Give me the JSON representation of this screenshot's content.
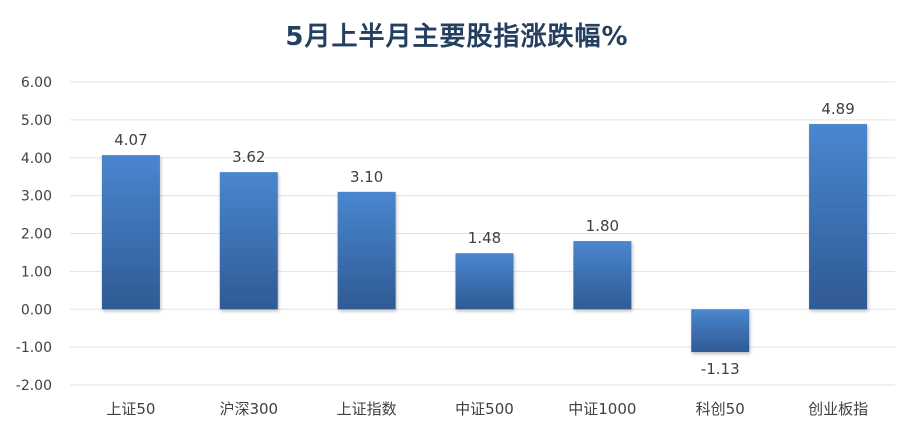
{
  "chart_data": {
    "type": "bar",
    "title": "5月上半月主要股指涨跌幅%",
    "categories": [
      "上证50",
      "沪深300",
      "上证指数",
      "中证500",
      "中证1000",
      "科创50",
      "创业板指"
    ],
    "values": [
      4.07,
      3.62,
      3.1,
      1.48,
      1.8,
      -1.13,
      4.89
    ],
    "value_labels": [
      "4.07",
      "3.62",
      "3.10",
      "1.48",
      "1.80",
      "-1.13",
      "4.89"
    ],
    "yticks": [
      "6.00",
      "5.00",
      "4.00",
      "3.00",
      "2.00",
      "1.00",
      "0.00",
      "-1.00",
      "-2.00"
    ],
    "ylim": [
      -2,
      6
    ],
    "grid": true,
    "colors": {
      "bar_top": "#4a86cf",
      "bar_bottom": "#2f5a94",
      "grid": "#e3e3e3",
      "text": "#404040",
      "title": "#243f60"
    }
  }
}
